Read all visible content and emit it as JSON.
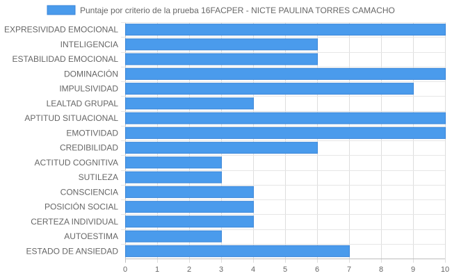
{
  "chart_data": {
    "type": "bar",
    "orientation": "horizontal",
    "categories": [
      "EXPRESIVIDAD EMOCIONAL",
      "INTELIGENCIA",
      "ESTABILIDAD EMOCIONAL",
      "DOMINACIÓN",
      "IMPULSIVIDAD",
      "LEALTAD GRUPAL",
      "APTITUD SITUACIONAL",
      "EMOTIVIDAD",
      "CREDIBILIDAD",
      "ACTITUD COGNITIVA",
      "SUTILEZA",
      "CONSCIENCIA",
      "POSICIÓN SOCIAL",
      "CERTEZA INDIVIDUAL",
      "AUTOESTIMA",
      "ESTADO DE ANSIEDAD"
    ],
    "series": [
      {
        "name": "Puntaje por criterio de la prueba 16FACPER - NICTE PAULINA TORRES CAMACHO",
        "values": [
          10,
          6,
          6,
          10,
          9,
          4,
          10,
          10,
          6,
          3,
          3,
          4,
          4,
          4,
          3,
          7
        ],
        "color": "#4a9bec",
        "border_color": "#3b86d8"
      }
    ],
    "xlim": [
      0,
      10
    ],
    "x_ticks": [
      "0",
      "1",
      "2",
      "3",
      "4",
      "5",
      "6",
      "7",
      "8",
      "9",
      "10"
    ],
    "grid": true,
    "legend_position": "top"
  }
}
